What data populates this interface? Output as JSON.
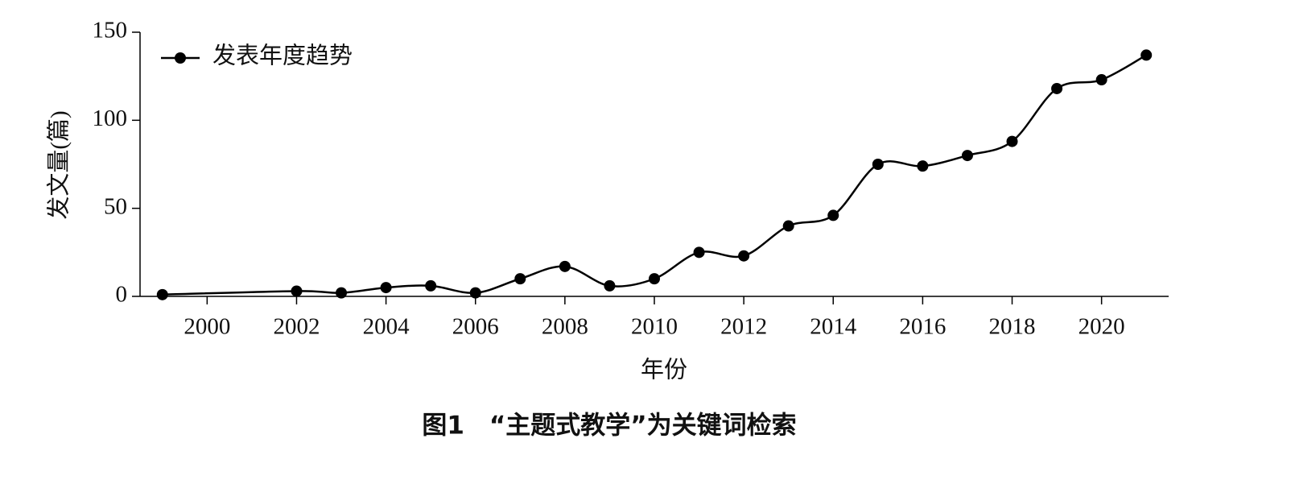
{
  "chart_data": {
    "type": "line",
    "x": [
      1999,
      2002,
      2003,
      2004,
      2005,
      2006,
      2007,
      2008,
      2009,
      2010,
      2011,
      2012,
      2013,
      2014,
      2015,
      2016,
      2017,
      2018,
      2019,
      2020,
      2021
    ],
    "series": [
      {
        "name": "发表年度趋势",
        "color": "#000000",
        "values": [
          1,
          3,
          2,
          5,
          6,
          2,
          10,
          17,
          6,
          10,
          25,
          23,
          40,
          46,
          75,
          74,
          80,
          88,
          118,
          123,
          137
        ]
      }
    ],
    "xlim": [
      1998.5,
      2021.5
    ],
    "xticks": [
      2000,
      2002,
      2004,
      2006,
      2008,
      2010,
      2012,
      2014,
      2016,
      2018,
      2020
    ],
    "ylim": [
      0,
      150
    ],
    "yticks": [
      0,
      50,
      100,
      150
    ],
    "xlabel": "年份",
    "ylabel": "发文量(篇)",
    "caption": "图1　“主题式教学”为关键词检索",
    "legend": "upper left",
    "smooth": true
  }
}
